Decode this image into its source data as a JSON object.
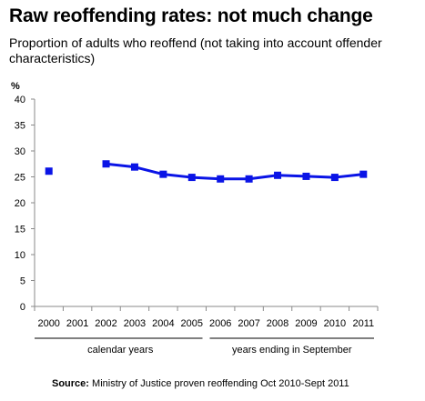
{
  "title": "Raw reoffending rates: not much change",
  "subtitle": "Proportion of adults who reoffend (not taking into account offender characteristics)",
  "source": {
    "label": "Source:",
    "text": "Ministry of Justice proven reoffending Oct 2010-Sept 2011"
  },
  "colors": {
    "series": "#0a14e6",
    "axis": "#8a8a8a",
    "text": "#000000"
  },
  "chart_data": {
    "type": "line",
    "title": "Raw reoffending rates: not much change",
    "ylabel": "%",
    "xlabel": "",
    "ylim": [
      0,
      40
    ],
    "yticks": [
      0,
      5,
      10,
      15,
      20,
      25,
      30,
      35,
      40
    ],
    "grid": false,
    "categories": [
      "2000",
      "2001",
      "2002",
      "2003",
      "2004",
      "2005",
      "2006",
      "2007",
      "2008",
      "2009",
      "2010",
      "2011"
    ],
    "series": [
      {
        "values": [
          26.1,
          null,
          27.5,
          26.9,
          25.5,
          24.9,
          24.6,
          24.6,
          25.3,
          25.1,
          24.9,
          25.5
        ]
      }
    ],
    "groups": [
      {
        "label": "calendar years",
        "from": "2000",
        "to": "2005"
      },
      {
        "label": "years ending in September",
        "from": "2006",
        "to": "2011"
      }
    ]
  }
}
